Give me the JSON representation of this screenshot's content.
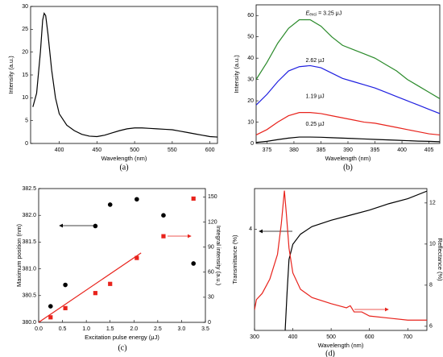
{
  "chart_data": [
    {
      "type": "line",
      "xlabel": "Wavelength (nm)",
      "ylabel": "Intensity (a.u.)",
      "caption": "(a)",
      "xlim": [
        362,
        610
      ],
      "xticks": [
        400,
        450,
        500,
        550,
        600
      ],
      "ylim": [
        0,
        30
      ],
      "yticks": [
        0,
        5,
        10,
        15,
        20,
        25,
        30
      ],
      "series": [
        {
          "style": "line",
          "color": "#000000",
          "x": [
            365,
            370,
            375,
            378,
            380,
            382,
            385,
            390,
            395,
            400,
            410,
            420,
            430,
            440,
            450,
            460,
            470,
            480,
            490,
            500,
            510,
            520,
            530,
            540,
            550,
            560,
            570,
            580,
            590,
            600,
            610
          ],
          "values": [
            8,
            11,
            20,
            27,
            28.5,
            28,
            24,
            16,
            10,
            6.5,
            4,
            2.8,
            2,
            1.6,
            1.5,
            1.8,
            2.3,
            2.8,
            3.2,
            3.4,
            3.4,
            3.3,
            3.2,
            3.1,
            3,
            2.7,
            2.4,
            2.1,
            1.8,
            1.5,
            1.4
          ]
        }
      ]
    },
    {
      "type": "line",
      "xlabel": "Wavelength (nm)",
      "ylabel": "Intensity (a.u.)",
      "caption": "(b)",
      "xlim": [
        373,
        407
      ],
      "xticks": [
        375,
        380,
        385,
        390,
        395,
        400,
        405
      ],
      "ylim": [
        0,
        65
      ],
      "yticks": [
        0,
        10,
        20,
        30,
        40,
        50,
        60
      ],
      "x": [
        373,
        375,
        377,
        379,
        381,
        383,
        385,
        387,
        389,
        391,
        393,
        395,
        397,
        399,
        401,
        403,
        405,
        407
      ],
      "annotations": [
        {
          "symbol": "E",
          "subscript": "exci",
          "text": " = 3.25 μJ"
        },
        {
          "text": "2.62 μJ"
        },
        {
          "text": "1.19 μJ"
        },
        {
          "text": "0.25 μJ"
        }
      ],
      "series": [
        {
          "style": "line",
          "color": "#2a8a2a",
          "values": [
            30,
            38,
            47,
            54,
            58,
            58,
            55,
            50,
            46,
            44,
            42,
            40,
            37,
            34,
            30,
            27,
            24,
            21
          ]
        },
        {
          "style": "line",
          "color": "#1f1fe0",
          "values": [
            18,
            23,
            29,
            34,
            36,
            36.5,
            35.5,
            33,
            30.5,
            29,
            27.5,
            26,
            24,
            22,
            20,
            18,
            16,
            14
          ]
        },
        {
          "style": "line",
          "color": "#e8231c",
          "values": [
            4,
            6.5,
            10,
            13,
            14.5,
            14.5,
            14,
            13,
            12,
            11,
            10,
            9.5,
            8.5,
            7.5,
            6.5,
            5.5,
            4.5,
            4
          ]
        },
        {
          "style": "line",
          "color": "#000000",
          "values": [
            0.5,
            1,
            1.8,
            2.5,
            3,
            3,
            2.9,
            2.7,
            2.5,
            2.3,
            2.1,
            1.9,
            1.7,
            1.5,
            1.3,
            1.1,
            1,
            0.8
          ]
        }
      ]
    },
    {
      "type": "scatter",
      "xlabel": "Excitation pulse energy (μJ)",
      "ylabel": "Maximum position (nm)",
      "y2label": "Integral intensity (a.u.)",
      "caption": "(c)",
      "xlim": [
        0,
        3.5
      ],
      "xticks": [
        {
          "value": 0,
          "label": "0.0"
        },
        0.5,
        {
          "value": 1,
          "label": "1.0"
        },
        1.5,
        {
          "value": 2,
          "label": "2.0"
        },
        2.5,
        {
          "value": 3,
          "label": "3.0"
        },
        3.5
      ],
      "ylim": [
        380,
        382.5
      ],
      "yticks": [
        {
          "value": 380,
          "label": "380.0"
        },
        380.5,
        {
          "value": 381,
          "label": "381.0"
        },
        381.5,
        {
          "value": 382,
          "label": "382.0"
        },
        382.5
      ],
      "y2lim": [
        0,
        160
      ],
      "y2ticks": [
        0,
        30,
        60,
        90,
        120,
        150
      ],
      "series": [
        {
          "style": "circle",
          "color": "#000000",
          "x": [
            0.25,
            0.56,
            1.19,
            1.5,
            2.06,
            2.62,
            3.25
          ],
          "values": [
            380.3,
            380.7,
            381.8,
            382.2,
            382.3,
            382.0,
            381.1
          ]
        },
        {
          "style": "square",
          "color": "#e8231c",
          "axis": "y2",
          "x": [
            0.25,
            0.56,
            1.19,
            1.5,
            2.06,
            2.62,
            3.25
          ],
          "values": [
            6,
            17,
            35,
            46,
            77,
            103,
            148
          ]
        },
        {
          "style": "line",
          "color": "#e8231c",
          "axis": "y2",
          "x": [
            0,
            2.15
          ],
          "values": [
            0,
            83
          ]
        }
      ]
    },
    {
      "type": "line",
      "xlabel": "Wavelength (nm)",
      "ylabel": "Transmittance (%)",
      "y2label": "Reflectance (%)",
      "caption": "(d)",
      "xlim": [
        300,
        750
      ],
      "xticks": [
        300,
        400,
        500,
        600,
        700
      ],
      "ylim": [
        0,
        5.6
      ],
      "yticks": [
        4
      ],
      "y2lim": [
        5.8,
        12.7
      ],
      "y2ticks": [
        6,
        8,
        10,
        12
      ],
      "series": [
        {
          "style": "line",
          "color": "#000000",
          "x": [
            380,
            385,
            390,
            400,
            420,
            450,
            500,
            550,
            600,
            650,
            700,
            750
          ],
          "values": [
            0,
            1.5,
            2.8,
            3.4,
            3.8,
            4.1,
            4.35,
            4.55,
            4.75,
            5.0,
            5.2,
            5.5
          ]
        },
        {
          "style": "line",
          "color": "#e8231c",
          "axis": "y2",
          "x": [
            300,
            305,
            320,
            340,
            360,
            370,
            378,
            383,
            390,
            400,
            420,
            450,
            500,
            540,
            550,
            560,
            580,
            600,
            650,
            700,
            750
          ],
          "values": [
            6.8,
            7.3,
            7.6,
            8.3,
            9.5,
            11,
            12.6,
            11.5,
            9.8,
            8.6,
            7.8,
            7.4,
            7.1,
            6.9,
            7.0,
            6.7,
            6.7,
            6.5,
            6.4,
            6.3,
            6.3
          ]
        }
      ]
    }
  ]
}
